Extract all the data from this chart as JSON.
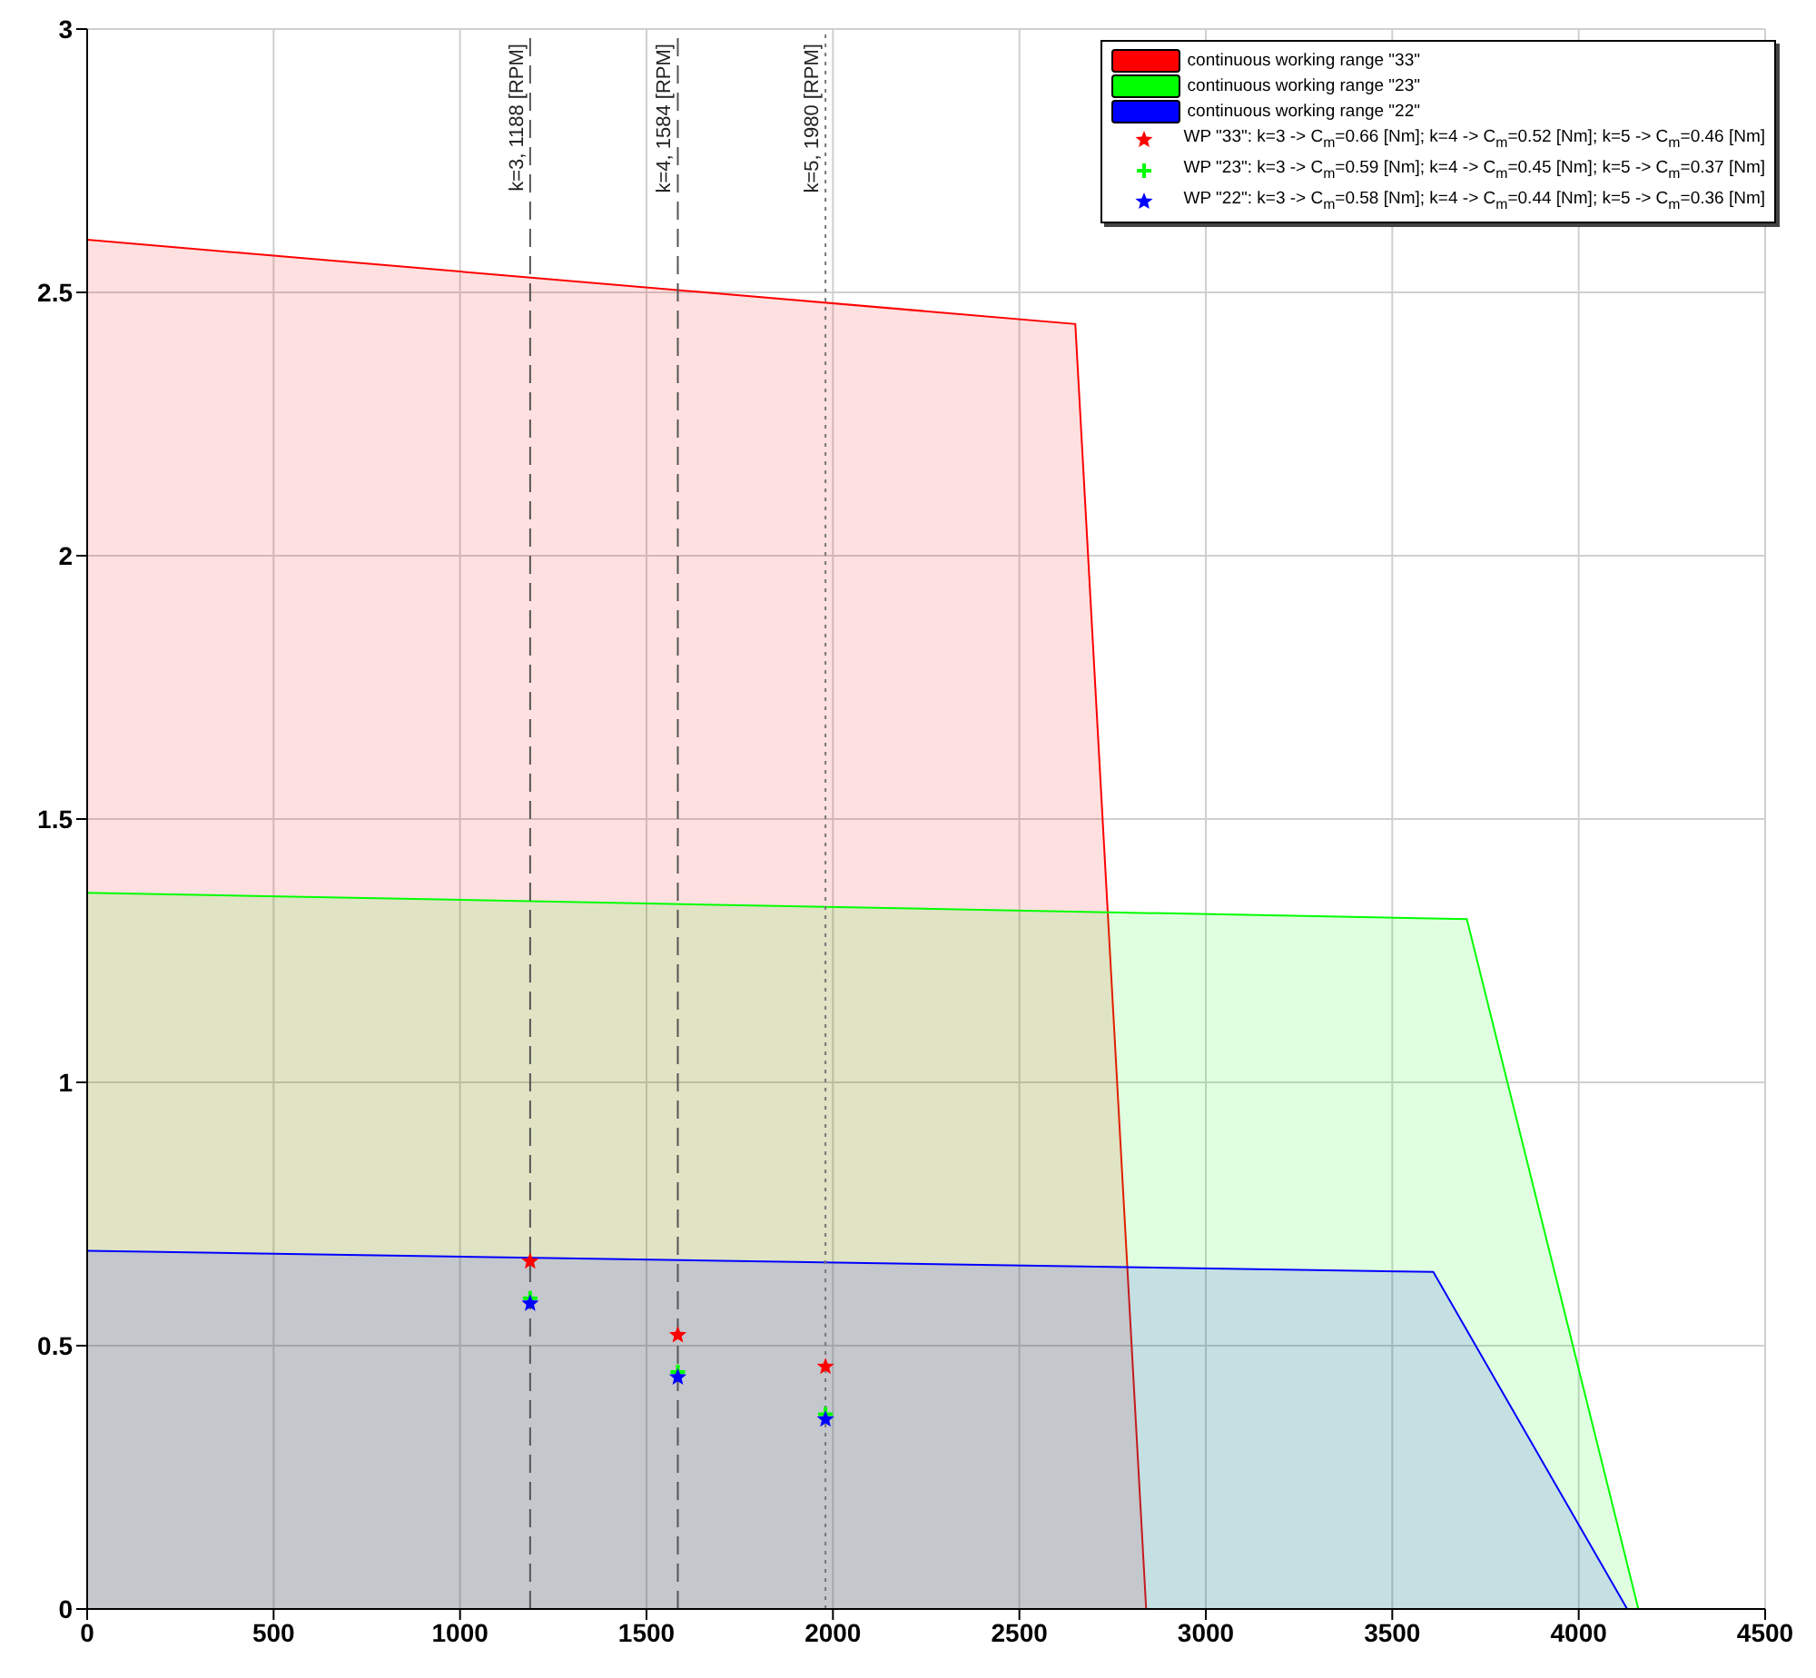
{
  "chart_data": {
    "type": "area",
    "xlim": [
      0,
      4500
    ],
    "xticks": [
      0,
      500,
      1000,
      1500,
      2000,
      2500,
      3000,
      3500,
      4000,
      4500
    ],
    "ylim": [
      0,
      3
    ],
    "yticks": [
      0,
      0.5,
      1,
      1.5,
      2,
      2.5,
      3
    ],
    "grid": true,
    "legend": "top right",
    "series": [
      {
        "type": "area",
        "name": "continuous working range \"33\"",
        "color": "#ff0000",
        "x": [
          0,
          2650,
          2840
        ],
        "values": [
          2.6,
          2.44,
          0
        ]
      },
      {
        "type": "area",
        "name": "continuous working range \"23\"",
        "color": "#00ff00",
        "x": [
          0,
          3700,
          4160
        ],
        "values": [
          1.36,
          1.31,
          0
        ]
      },
      {
        "type": "area",
        "name": "continuous working range \"22\"",
        "color": "#0000ff",
        "x": [
          0,
          3610,
          4130
        ],
        "values": [
          0.68,
          0.64,
          0
        ]
      },
      {
        "type": "scatter",
        "marker": "star",
        "name": "WP \"33\": k=3 -> C$_{m}$=0.66 [Nm]; k=4 -> C$_{m}$=0.52 [Nm]; k=5 -> C$_{m}$=0.46 [Nm]",
        "color": "#ff0000",
        "x": [
          1188,
          1584,
          1980
        ],
        "values": [
          0.66,
          0.52,
          0.46
        ]
      },
      {
        "type": "scatter",
        "marker": "cross",
        "name": "WP \"23\": k=3 -> C$_{m}$=0.59 [Nm]; k=4 -> C$_{m}$=0.45 [Nm]; k=5 -> C$_{m}$=0.37 [Nm]",
        "color": "#00ff00",
        "x": [
          1188,
          1584,
          1980
        ],
        "values": [
          0.59,
          0.45,
          0.37
        ]
      },
      {
        "type": "scatter",
        "marker": "star",
        "name": "WP \"22\": k=3 -> C$_{m}$=0.58 [Nm]; k=4 -> C$_{m}$=0.44 [Nm]; k=5 -> C$_{m}$=0.36 [Nm]",
        "color": "#0000ff",
        "x": [
          1188,
          1584,
          1980
        ],
        "values": [
          0.58,
          0.44,
          0.36
        ]
      }
    ],
    "ref_lines": [
      {
        "axis": "x",
        "value": 1188,
        "label": "k=3, 1188 [RPM]",
        "color": "#555555",
        "line_style": "dashed"
      },
      {
        "axis": "x",
        "value": 1584,
        "label": "k=4, 1584 [RPM]",
        "color": "#555555",
        "line_style": "dashed"
      },
      {
        "axis": "x",
        "value": 1980,
        "label": "k=5, 1980 [RPM]",
        "color": "#777777",
        "line_style": "dotted"
      }
    ]
  }
}
